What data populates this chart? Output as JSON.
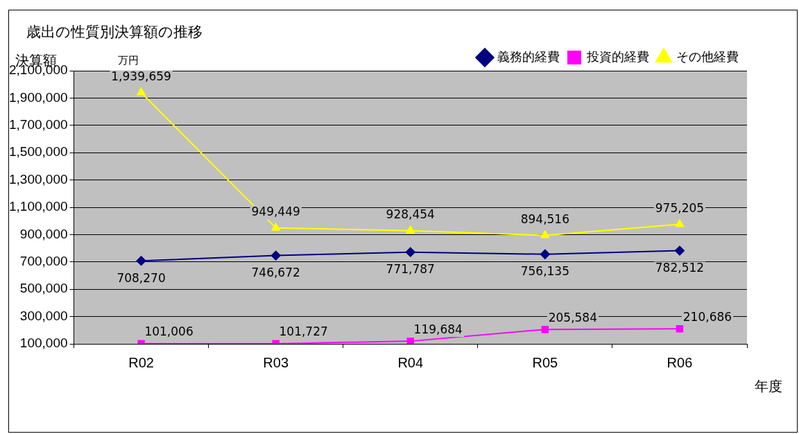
{
  "chart_data": {
    "type": "line",
    "title": "歳出の性質別決算額の推移",
    "ylabel": "決算額",
    "xlabel": "年度",
    "annotations": [
      "万円"
    ],
    "categories": [
      "R02",
      "R03",
      "R04",
      "R05",
      "R06"
    ],
    "series": [
      {
        "name": "義務的経費",
        "color": "#000080",
        "marker": "diamond",
        "values": [
          708270,
          746672,
          771787,
          756135,
          782512
        ],
        "value_labels": [
          "708,270",
          "746,672",
          "771,787",
          "756,135",
          "782,512"
        ]
      },
      {
        "name": "投資的経費",
        "color": "#ff00ff",
        "marker": "square",
        "values": [
          101006,
          101727,
          119684,
          205584,
          210686
        ],
        "value_labels": [
          "101,006",
          "101,727",
          "119,684",
          "205,584",
          "210,686"
        ]
      },
      {
        "name": "その他経費",
        "color": "#ffff00",
        "marker": "triangle",
        "values": [
          1939659,
          949449,
          928454,
          894516,
          975205
        ],
        "value_labels": [
          "1,939,659",
          "949,449",
          "928,454",
          "894,516",
          "975,205"
        ]
      }
    ],
    "ylim": [
      100000,
      2100000
    ],
    "yticks": [
      {
        "value": 100000,
        "label": "100,000"
      },
      {
        "value": 300000,
        "label": "300,000"
      },
      {
        "value": 500000,
        "label": "500,000"
      },
      {
        "value": 700000,
        "label": "700,000"
      },
      {
        "value": 900000,
        "label": "900,000"
      },
      {
        "value": 1100000,
        "label": "1,100,000"
      },
      {
        "value": 1300000,
        "label": "1,300,000"
      },
      {
        "value": 1500000,
        "label": "1,500,000"
      },
      {
        "value": 1700000,
        "label": "1,700,000"
      },
      {
        "value": 1900000,
        "label": "1,900,000"
      },
      {
        "value": 2100000,
        "label": "2,100,000"
      }
    ],
    "grid": "y",
    "legend": "top right",
    "line_style": "solid"
  }
}
